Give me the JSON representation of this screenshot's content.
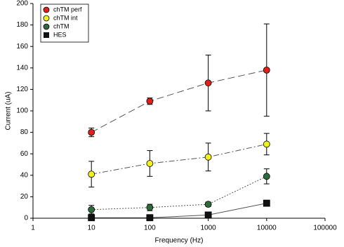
{
  "chart_data": {
    "type": "scatter",
    "x_label": "Frequency (Hz)",
    "y_label": "Current (uA)",
    "x_scale": "log",
    "xlim": [
      1,
      100000
    ],
    "xticks": [
      1,
      10,
      100,
      1000,
      10000,
      100000
    ],
    "ylim": [
      0,
      200
    ],
    "yticks": [
      0,
      20,
      40,
      60,
      80,
      100,
      120,
      140,
      160,
      180,
      200
    ],
    "legend": "top-left",
    "series": [
      {
        "name": "chTM perf",
        "color": "#e0201b",
        "marker": "circle",
        "dash": "10,5",
        "x": [
          10,
          100,
          1000,
          10000
        ],
        "values": [
          80,
          109,
          126,
          138
        ],
        "errors": [
          4,
          3,
          26,
          43
        ]
      },
      {
        "name": "chTM int",
        "color": "#f2f01c",
        "marker": "circle",
        "dash": "8,3,2,3",
        "x": [
          10,
          100,
          1000,
          10000
        ],
        "values": [
          41,
          51,
          57,
          69
        ],
        "errors": [
          12,
          12,
          13,
          10
        ]
      },
      {
        "name": "chTM",
        "color": "#2f6b3a",
        "marker": "circle",
        "dash": "2,2",
        "x": [
          10,
          100,
          1000,
          10000
        ],
        "values": [
          8,
          10,
          13,
          39
        ],
        "errors": [
          4,
          3,
          2,
          7
        ]
      },
      {
        "name": "HES",
        "color": "#111111",
        "marker": "square",
        "dash": "none",
        "x": [
          10,
          100,
          1000,
          10000
        ],
        "values": [
          0.5,
          0.5,
          3,
          14
        ],
        "errors": [
          0,
          0,
          0,
          0
        ]
      }
    ]
  }
}
